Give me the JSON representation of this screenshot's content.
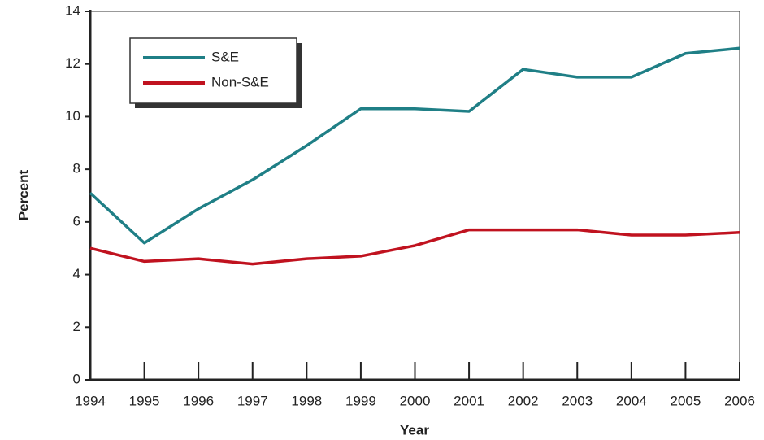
{
  "chart_data": {
    "type": "line",
    "x": [
      1994,
      1995,
      1996,
      1997,
      1998,
      1999,
      2000,
      2001,
      2002,
      2003,
      2004,
      2005,
      2006
    ],
    "series": [
      {
        "name": "S&E",
        "color": "#1f7f86",
        "values": [
          7.1,
          5.2,
          6.5,
          7.6,
          8.9,
          10.3,
          10.3,
          10.2,
          11.8,
          11.5,
          11.5,
          12.4,
          12.6
        ]
      },
      {
        "name": "Non-S&E",
        "color": "#c0121f",
        "values": [
          5.0,
          4.5,
          4.6,
          4.4,
          4.6,
          4.7,
          5.1,
          5.7,
          5.7,
          5.7,
          5.5,
          5.5,
          5.6
        ]
      }
    ],
    "xlim": [
      1994,
      2006
    ],
    "xticks": [
      1994,
      1995,
      1996,
      1997,
      1998,
      1999,
      2000,
      2001,
      2002,
      2003,
      2004,
      2005,
      2006
    ],
    "ylim": [
      0,
      14
    ],
    "yticks": [
      0,
      2,
      4,
      6,
      8,
      10,
      12,
      14
    ],
    "xlabel": "Year",
    "ylabel": "Percent"
  }
}
